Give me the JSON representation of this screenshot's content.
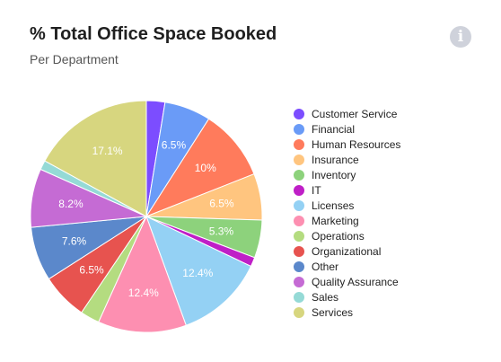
{
  "header": {
    "title": "% Total Office Space Booked",
    "subtitle": "Per Department",
    "info_icon": "info-icon",
    "info_icon_glyph": "i"
  },
  "chart_data": {
    "type": "pie",
    "title": "% Total Office Space Booked",
    "subtitle": "Per Department",
    "legend_position": "right",
    "categories": [
      "Customer Service",
      "Financial",
      "Human Resources",
      "Insurance",
      "Inventory",
      "IT",
      "Licenses",
      "Marketing",
      "Operations",
      "Organizational",
      "Other",
      "Quality Assurance",
      "Sales",
      "Services"
    ],
    "values": [
      2.6,
      6.5,
      10,
      6.5,
      5.3,
      1.3,
      12.4,
      12.4,
      2.7,
      6.5,
      7.6,
      8.2,
      1.3,
      17.1
    ],
    "data_labels": [
      "",
      "6.5%",
      "10%",
      "6.5%",
      "5.3%",
      "",
      "12.4%",
      "12.4%",
      "",
      "6.5%",
      "7.6%",
      "8.2%",
      "",
      "17.1%"
    ],
    "colors": [
      "#7c4dff",
      "#6a9bf7",
      "#ff7b5c",
      "#ffc57f",
      "#8dd27c",
      "#bf1fc7",
      "#94d1f4",
      "#fd8fb1",
      "#b4dc80",
      "#e7534f",
      "#5b88cb",
      "#c56bd4",
      "#95dad6",
      "#d7d67f"
    ]
  }
}
